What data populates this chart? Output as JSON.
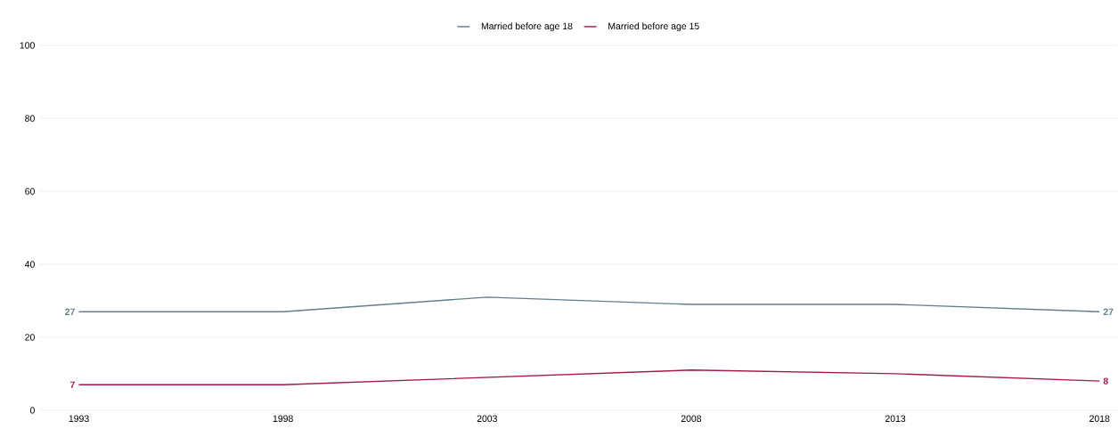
{
  "chart_data": {
    "type": "line",
    "categories": [
      "1993",
      "1998",
      "2003",
      "2008",
      "2013",
      "2018"
    ],
    "series": [
      {
        "name": "Married before age 18",
        "color": "#5f7f89",
        "values": [
          27,
          27,
          31,
          29,
          29,
          27
        ],
        "value_labels": [
          "27",
          null,
          null,
          null,
          null,
          "27"
        ]
      },
      {
        "name": "Married before age 15",
        "color": "#a3164f",
        "values": [
          7,
          7,
          9,
          11,
          10,
          8
        ],
        "value_labels": [
          "7",
          null,
          null,
          null,
          null,
          "8"
        ]
      }
    ],
    "ylim": [
      0,
      100
    ],
    "yticks": [
      0,
      20,
      40,
      60,
      80,
      100
    ],
    "grid": "y",
    "legend": "top",
    "line_style": "solid",
    "marker": "none"
  }
}
